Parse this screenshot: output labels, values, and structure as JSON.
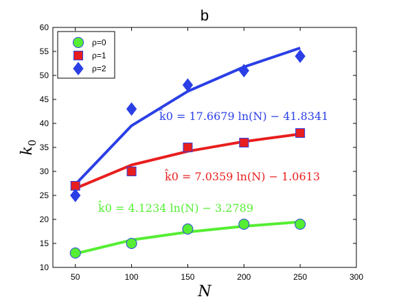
{
  "chart_data": {
    "type": "line",
    "title": "b",
    "xlabel": "N",
    "ylabel": "k0",
    "xlim": [
      30,
      300
    ],
    "ylim": [
      10,
      60
    ],
    "xticks": [
      50,
      100,
      150,
      200,
      250,
      300
    ],
    "yticks": [
      10,
      15,
      20,
      25,
      30,
      35,
      40,
      45,
      50,
      55,
      60
    ],
    "legend_position": "top-left",
    "series": [
      {
        "name": "ρ=0",
        "color": "#55ee33",
        "marker": "circle",
        "x": [
          50,
          100,
          150,
          200,
          250
        ],
        "y": [
          13,
          15,
          18,
          19,
          19
        ],
        "fit_y": [
          12.85,
          15.71,
          17.38,
          18.57,
          19.49
        ],
        "fit_label": "k̂0 = 4.1234 ln(N) − 3.2789"
      },
      {
        "name": "ρ=1",
        "color": "#e81e1e",
        "marker": "square",
        "x": [
          50,
          100,
          150,
          200,
          250
        ],
        "y": [
          27,
          30,
          35,
          36,
          38
        ],
        "fit_y": [
          26.46,
          31.34,
          34.19,
          36.22,
          37.79
        ],
        "fit_label": "k̂0 = 7.0359 ln(N) − 1.0613"
      },
      {
        "name": "ρ=2",
        "color": "#2a3fe6",
        "marker": "diamond",
        "x": [
          50,
          100,
          150,
          200,
          250
        ],
        "y": [
          25,
          43,
          48,
          51,
          54
        ],
        "fit_y": [
          27.28,
          39.53,
          46.69,
          51.77,
          55.71
        ],
        "fit_label": "k̂0 = 17.6679 ln(N) − 41.8341"
      }
    ]
  }
}
